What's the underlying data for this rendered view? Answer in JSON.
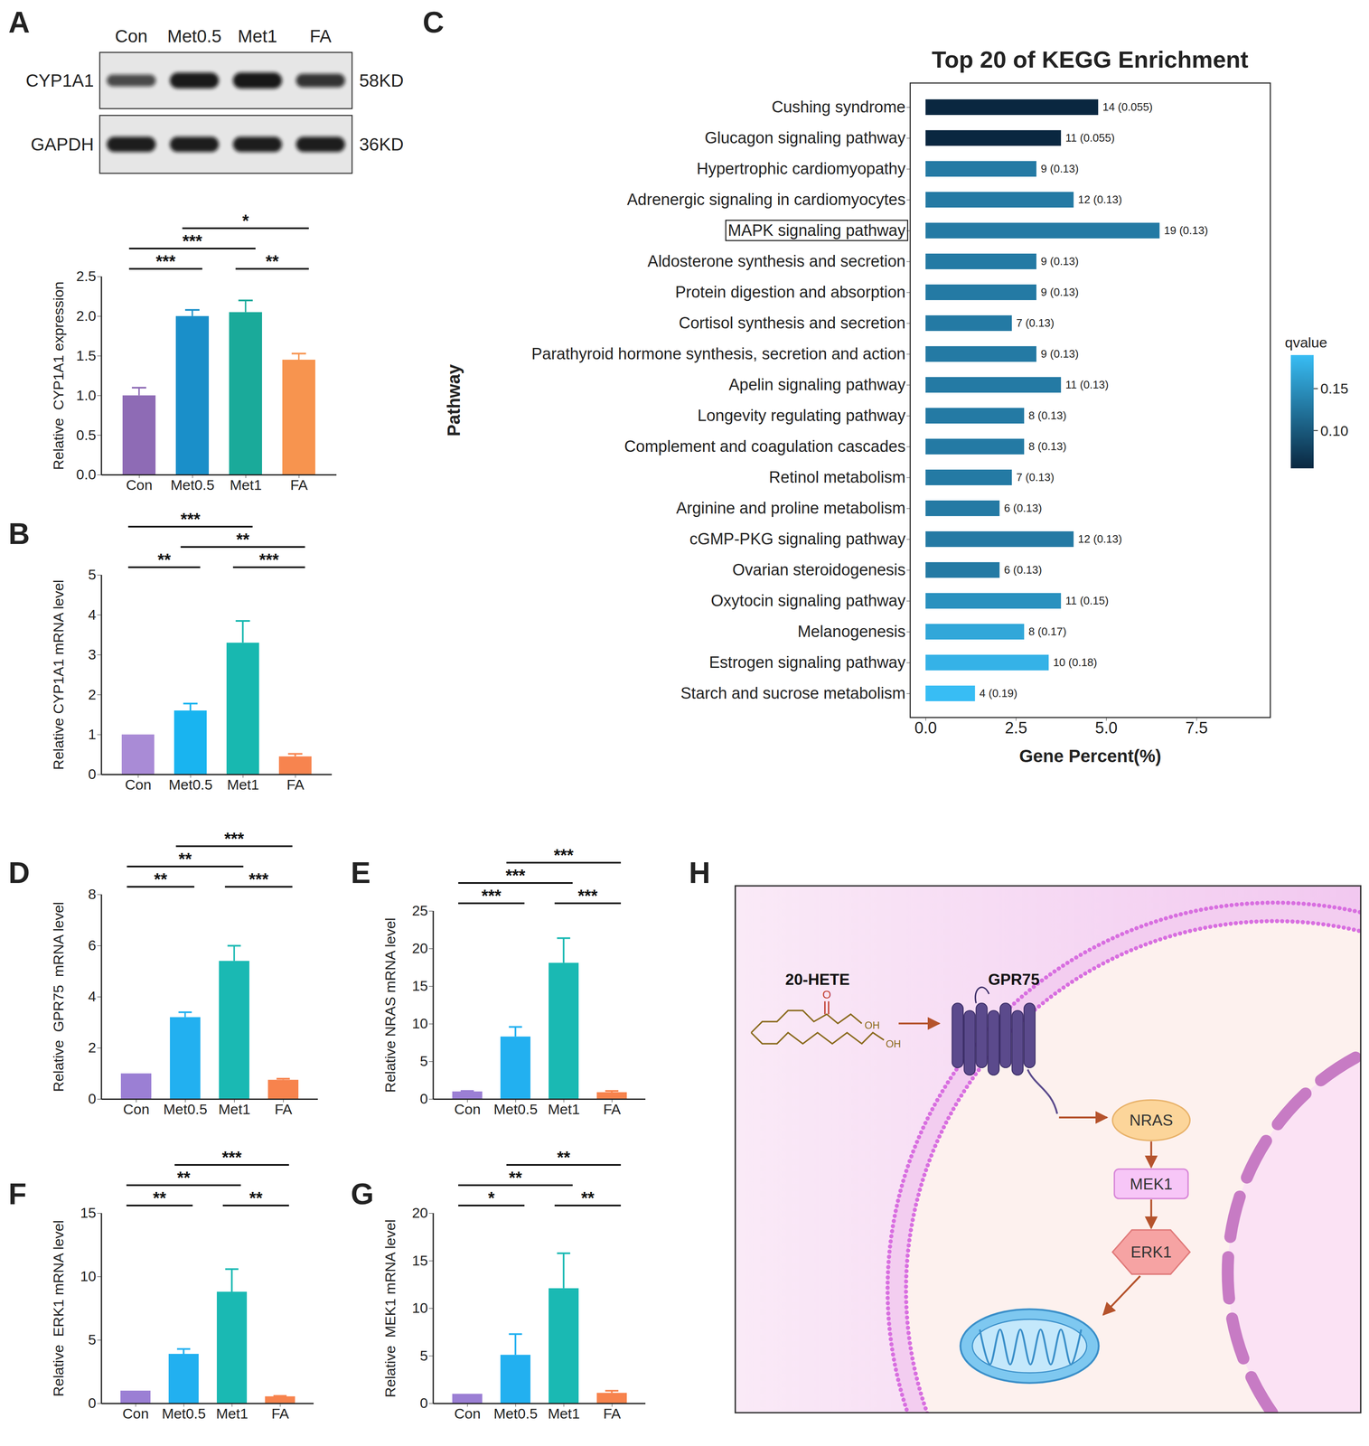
{
  "chart_data": [
    {
      "panel": "A",
      "type": "bar",
      "categories": [
        "Con",
        "Met0.5",
        "Met1",
        "FA"
      ],
      "values": [
        1.0,
        2.0,
        2.05,
        1.45
      ],
      "errors": [
        0.1,
        0.08,
        0.15,
        0.08
      ],
      "colors": [
        "#8e6bb5",
        "#1a8fc9",
        "#1aaa9a",
        "#f7944f"
      ],
      "ylabel": "Relative  CYP1A1 expression",
      "ylim": [
        0,
        2.5
      ],
      "yticks": [
        {
          "value": 0,
          "label": "0.0"
        },
        0.5,
        {
          "value": 1,
          "label": "1.0"
        },
        1.5,
        {
          "value": 2,
          "label": "2.0"
        },
        2.5
      ],
      "comparisons": [
        {
          "groups": [
            "Con",
            "Met0.5"
          ],
          "label": "***"
        },
        {
          "groups": [
            "Met1",
            "FA"
          ],
          "label": "**"
        },
        {
          "groups": [
            "Con",
            "Met1"
          ],
          "label": "***"
        },
        {
          "groups": [
            "Met0.5",
            "FA"
          ],
          "label": "*"
        }
      ]
    },
    {
      "panel": "B",
      "type": "bar",
      "categories": [
        "Con",
        "Met0.5",
        "Met1",
        "FA"
      ],
      "values": [
        1.0,
        1.6,
        3.3,
        0.45
      ],
      "errors": [
        0,
        0.18,
        0.55,
        0.07
      ],
      "colors": [
        "#a98bd6",
        "#19b4f0",
        "#18b8b0",
        "#f7844f"
      ],
      "ylabel": "Relative CYP1A1 mRNA level",
      "ylim": [
        0,
        5
      ],
      "yticks": [
        0,
        1,
        2,
        3,
        4,
        5
      ],
      "comparisons": [
        {
          "groups": [
            "Con",
            "Met0.5"
          ],
          "label": "**"
        },
        {
          "groups": [
            "Met1",
            "FA"
          ],
          "label": "***"
        },
        {
          "groups": [
            "Met0.5",
            "FA"
          ],
          "label": "**"
        },
        {
          "groups": [
            "Con",
            "Met1"
          ],
          "label": "***"
        }
      ]
    },
    {
      "panel": "C",
      "type": "bar",
      "orientation": "horizontal",
      "title": "Top 20 of KEGG Enrichment",
      "categories": [
        "Cushing syndrome",
        "Glucagon signaling pathway",
        "Hypertrophic cardiomyopathy",
        "Adrenergic signaling in cardiomyocytes",
        "MAPK signaling pathway",
        "Aldosterone synthesis and secretion",
        "Protein digestion and absorption",
        "Cortisol synthesis and secretion",
        "Parathyroid hormone synthesis, secretion and action",
        "Apelin signaling pathway",
        "Longevity regulating pathway",
        "Complement and coagulation cascades",
        "Retinol metabolism",
        "Arginine and proline metabolism",
        "cGMP-PKG signaling pathway",
        "Ovarian steroidogenesis",
        "Oxytocin signaling pathway",
        "Melanogenesis",
        "Estrogen signaling pathway",
        "Starch and sucrose metabolism"
      ],
      "values": [
        4.78,
        3.75,
        3.07,
        4.1,
        6.48,
        3.07,
        3.07,
        2.39,
        3.07,
        3.75,
        2.73,
        2.73,
        2.39,
        2.05,
        4.1,
        2.05,
        3.75,
        2.73,
        3.41,
        1.37
      ],
      "bar_labels": [
        "14 (0.055)",
        "11 (0.055)",
        "9 (0.13)",
        "12 (0.13)",
        "19 (0.13)",
        "9 (0.13)",
        "9 (0.13)",
        "7 (0.13)",
        "9 (0.13)",
        "11 (0.13)",
        "8 (0.13)",
        "8 (0.13)",
        "7 (0.13)",
        "6 (0.13)",
        "12 (0.13)",
        "6 (0.13)",
        "11 (0.15)",
        "8 (0.17)",
        "10 (0.18)",
        "4 (0.19)"
      ],
      "qvalues": [
        0.055,
        0.055,
        0.13,
        0.13,
        0.13,
        0.13,
        0.13,
        0.13,
        0.13,
        0.13,
        0.13,
        0.13,
        0.13,
        0.13,
        0.13,
        0.13,
        0.15,
        0.17,
        0.18,
        0.19
      ],
      "xlabel": "Gene Percent(%)",
      "ylabel": "Pathway",
      "xlim": [
        -0.43,
        9.54
      ],
      "xticks": [
        {
          "value": 0,
          "label": "0.0"
        },
        2.5,
        {
          "value": 5,
          "label": "5.0"
        },
        7.5
      ],
      "highlight": "MAPK signaling pathway",
      "colorbar": {
        "label": "qvalue",
        "range": [
          0.055,
          0.19
        ],
        "ticks": [
          {
            "value": 0.1,
            "label": "0.10"
          },
          0.15
        ],
        "colors": [
          "#0a2740",
          "#38bdf4"
        ]
      }
    },
    {
      "panel": "D",
      "type": "bar",
      "categories": [
        "Con",
        "Met0.5",
        "Met1",
        "FA"
      ],
      "values": [
        1.0,
        3.2,
        5.4,
        0.75
      ],
      "errors": [
        0,
        0.2,
        0.6,
        0.05
      ],
      "colors": [
        "#9b7fd4",
        "#22b0f0",
        "#1ab9b3",
        "#f7834d"
      ],
      "ylabel": "Relative  GPR75  mRNA level",
      "ylim": [
        0,
        8
      ],
      "yticks": [
        0,
        2,
        4,
        6,
        8
      ],
      "comparisons": [
        {
          "groups": [
            "Con",
            "Met0.5"
          ],
          "label": "**"
        },
        {
          "groups": [
            "Met1",
            "FA"
          ],
          "label": "***"
        },
        {
          "groups": [
            "Con",
            "Met1"
          ],
          "label": "**"
        },
        {
          "groups": [
            "Met0.5",
            "FA"
          ],
          "label": "***"
        }
      ]
    },
    {
      "panel": "E",
      "type": "bar",
      "categories": [
        "Con",
        "Met0.5",
        "Met1",
        "FA"
      ],
      "values": [
        1.0,
        8.3,
        18.1,
        0.9
      ],
      "errors": [
        0.1,
        1.3,
        3.3,
        0.2
      ],
      "colors": [
        "#9b7fd4",
        "#22b0f0",
        "#1ab9b3",
        "#f7834d"
      ],
      "ylabel": "Relative NRAS mRNA level",
      "ylim": [
        0,
        25
      ],
      "yticks": [
        0,
        5,
        10,
        15,
        20,
        25
      ],
      "comparisons": [
        {
          "groups": [
            "Con",
            "Met0.5"
          ],
          "label": "***"
        },
        {
          "groups": [
            "Met1",
            "FA"
          ],
          "label": "***"
        },
        {
          "groups": [
            "Con",
            "Met1"
          ],
          "label": "***"
        },
        {
          "groups": [
            "Met0.5",
            "FA"
          ],
          "label": "***"
        }
      ]
    },
    {
      "panel": "F",
      "type": "bar",
      "categories": [
        "Con",
        "Met0.5",
        "Met1",
        "FA"
      ],
      "values": [
        1.0,
        3.9,
        8.8,
        0.55
      ],
      "errors": [
        0,
        0.4,
        1.8,
        0.05
      ],
      "colors": [
        "#9b7fd4",
        "#22b0f0",
        "#1ab9b3",
        "#f7834d"
      ],
      "ylabel": "Relative  ERK1 mRNA level",
      "ylim": [
        0,
        15
      ],
      "yticks": [
        0,
        5,
        10,
        15
      ],
      "comparisons": [
        {
          "groups": [
            "Con",
            "Met0.5"
          ],
          "label": "**"
        },
        {
          "groups": [
            "Met1",
            "FA"
          ],
          "label": "**"
        },
        {
          "groups": [
            "Con",
            "Met1"
          ],
          "label": "**"
        },
        {
          "groups": [
            "Met0.5",
            "FA"
          ],
          "label": "***"
        }
      ]
    },
    {
      "panel": "G",
      "type": "bar",
      "categories": [
        "Con",
        "Met0.5",
        "Met1",
        "FA"
      ],
      "values": [
        1.0,
        5.1,
        12.1,
        1.1
      ],
      "errors": [
        0,
        2.2,
        3.7,
        0.25
      ],
      "colors": [
        "#9b7fd4",
        "#22b0f0",
        "#1ab9b3",
        "#f7834d"
      ],
      "ylabel": "Relative  MEK1 mRNA level",
      "ylim": [
        0,
        20
      ],
      "yticks": [
        0,
        5,
        10,
        15,
        20
      ],
      "comparisons": [
        {
          "groups": [
            "Con",
            "Met0.5"
          ],
          "label": "*"
        },
        {
          "groups": [
            "Met1",
            "FA"
          ],
          "label": "**"
        },
        {
          "groups": [
            "Con",
            "Met1"
          ],
          "label": "**"
        },
        {
          "groups": [
            "Met0.5",
            "FA"
          ],
          "label": "**"
        }
      ]
    }
  ],
  "blot": {
    "lanes": [
      "Con",
      "Met0.5",
      "Met1",
      "FA"
    ],
    "rows": [
      {
        "label": "CYP1A1",
        "size": "58KD"
      },
      {
        "label": "GAPDH",
        "size": "36KD"
      }
    ]
  },
  "diagram": {
    "panel": "H",
    "molecule": "20-HETE",
    "atoms": [
      "O",
      "OH",
      "OH"
    ],
    "receptor": "GPR75",
    "nodes": [
      "NRAS",
      "MEK1",
      "ERK1"
    ]
  }
}
